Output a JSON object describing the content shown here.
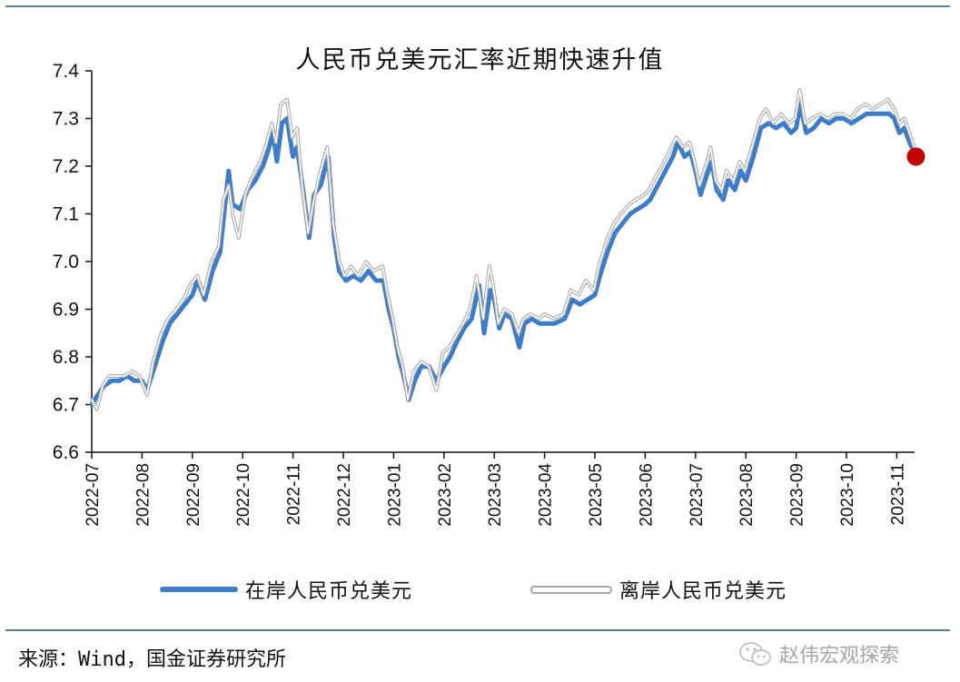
{
  "chart_data": {
    "type": "line",
    "title": "人民币兑美元汇率近期快速升值",
    "xlabel": "",
    "ylabel": "",
    "ylim": [
      6.6,
      7.4
    ],
    "yticks": [
      "6.6",
      "6.7",
      "6.8",
      "6.9",
      "7.0",
      "7.1",
      "7.2",
      "7.3",
      "7.4"
    ],
    "xticks": [
      "2022-07",
      "2022-08",
      "2022-09",
      "2022-10",
      "2022-11",
      "2022-12",
      "2023-01",
      "2023-02",
      "2023-03",
      "2023-04",
      "2023-05",
      "2023-06",
      "2023-07",
      "2023-08",
      "2023-09",
      "2023-10",
      "2023-11"
    ],
    "grid": false,
    "legend_position": "bottom",
    "series": [
      {
        "name": "在岸人民币兑美元",
        "color": "#3d7cc9",
        "style": "solid-thick",
        "points": [
          [
            0.0,
            6.7
          ],
          [
            0.12,
            6.72
          ],
          [
            0.25,
            6.74
          ],
          [
            0.4,
            6.75
          ],
          [
            0.55,
            6.75
          ],
          [
            0.7,
            6.76
          ],
          [
            0.85,
            6.75
          ],
          [
            1.0,
            6.75
          ],
          [
            1.1,
            6.73
          ],
          [
            1.25,
            6.78
          ],
          [
            1.4,
            6.83
          ],
          [
            1.55,
            6.87
          ],
          [
            1.7,
            6.89
          ],
          [
            1.85,
            6.91
          ],
          [
            2.0,
            6.93
          ],
          [
            2.1,
            6.96
          ],
          [
            2.25,
            6.92
          ],
          [
            2.4,
            6.98
          ],
          [
            2.55,
            7.02
          ],
          [
            2.65,
            7.12
          ],
          [
            2.72,
            7.19
          ],
          [
            2.8,
            7.12
          ],
          [
            2.95,
            7.11
          ],
          [
            3.1,
            7.15
          ],
          [
            3.25,
            7.17
          ],
          [
            3.4,
            7.2
          ],
          [
            3.5,
            7.23
          ],
          [
            3.6,
            7.27
          ],
          [
            3.68,
            7.21
          ],
          [
            3.78,
            7.29
          ],
          [
            3.88,
            7.3
          ],
          [
            4.0,
            7.22
          ],
          [
            4.08,
            7.24
          ],
          [
            4.2,
            7.15
          ],
          [
            4.32,
            7.05
          ],
          [
            4.42,
            7.14
          ],
          [
            4.55,
            7.16
          ],
          [
            4.7,
            7.22
          ],
          [
            4.82,
            7.05
          ],
          [
            4.92,
            6.98
          ],
          [
            5.05,
            6.96
          ],
          [
            5.2,
            6.97
          ],
          [
            5.35,
            6.96
          ],
          [
            5.5,
            6.98
          ],
          [
            5.65,
            6.96
          ],
          [
            5.8,
            6.96
          ],
          [
            5.9,
            6.9
          ],
          [
            6.0,
            6.86
          ],
          [
            6.1,
            6.8
          ],
          [
            6.2,
            6.76
          ],
          [
            6.3,
            6.71
          ],
          [
            6.42,
            6.75
          ],
          [
            6.55,
            6.78
          ],
          [
            6.7,
            6.78
          ],
          [
            6.85,
            6.75
          ],
          [
            7.0,
            6.78
          ],
          [
            7.12,
            6.8
          ],
          [
            7.25,
            6.83
          ],
          [
            7.4,
            6.86
          ],
          [
            7.55,
            6.88
          ],
          [
            7.7,
            6.95
          ],
          [
            7.8,
            6.85
          ],
          [
            7.92,
            6.94
          ],
          [
            8.0,
            6.92
          ],
          [
            8.1,
            6.86
          ],
          [
            8.2,
            6.89
          ],
          [
            8.35,
            6.88
          ],
          [
            8.5,
            6.82
          ],
          [
            8.6,
            6.87
          ],
          [
            8.75,
            6.88
          ],
          [
            8.9,
            6.87
          ],
          [
            9.0,
            6.87
          ],
          [
            9.2,
            6.87
          ],
          [
            9.4,
            6.88
          ],
          [
            9.55,
            6.92
          ],
          [
            9.7,
            6.91
          ],
          [
            9.85,
            6.92
          ],
          [
            10.0,
            6.93
          ],
          [
            10.1,
            6.97
          ],
          [
            10.25,
            7.02
          ],
          [
            10.4,
            7.06
          ],
          [
            10.55,
            7.08
          ],
          [
            10.7,
            7.1
          ],
          [
            10.85,
            7.11
          ],
          [
            11.0,
            7.12
          ],
          [
            11.1,
            7.13
          ],
          [
            11.25,
            7.16
          ],
          [
            11.4,
            7.19
          ],
          [
            11.55,
            7.22
          ],
          [
            11.65,
            7.25
          ],
          [
            11.78,
            7.22
          ],
          [
            11.9,
            7.23
          ],
          [
            12.0,
            7.19
          ],
          [
            12.1,
            7.14
          ],
          [
            12.22,
            7.18
          ],
          [
            12.32,
            7.21
          ],
          [
            12.42,
            7.15
          ],
          [
            12.55,
            7.13
          ],
          [
            12.65,
            7.17
          ],
          [
            12.78,
            7.15
          ],
          [
            12.9,
            7.19
          ],
          [
            13.0,
            7.17
          ],
          [
            13.15,
            7.22
          ],
          [
            13.3,
            7.28
          ],
          [
            13.45,
            7.29
          ],
          [
            13.6,
            7.28
          ],
          [
            13.75,
            7.29
          ],
          [
            13.9,
            7.27
          ],
          [
            14.0,
            7.28
          ],
          [
            14.08,
            7.33
          ],
          [
            14.2,
            7.27
          ],
          [
            14.35,
            7.28
          ],
          [
            14.5,
            7.3
          ],
          [
            14.65,
            7.29
          ],
          [
            14.8,
            7.3
          ],
          [
            14.95,
            7.3
          ],
          [
            15.1,
            7.29
          ],
          [
            15.25,
            7.3
          ],
          [
            15.4,
            7.31
          ],
          [
            15.55,
            7.31
          ],
          [
            15.7,
            7.31
          ],
          [
            15.85,
            7.31
          ],
          [
            15.95,
            7.3
          ],
          [
            16.05,
            7.27
          ],
          [
            16.15,
            7.28
          ],
          [
            16.25,
            7.25
          ],
          [
            16.35,
            7.23
          ]
        ]
      },
      {
        "name": "离岸人民币兑美元",
        "color": "#a8a8a8",
        "style": "outlined",
        "points": [
          [
            0.0,
            6.71
          ],
          [
            0.1,
            6.69
          ],
          [
            0.22,
            6.74
          ],
          [
            0.35,
            6.76
          ],
          [
            0.5,
            6.76
          ],
          [
            0.65,
            6.76
          ],
          [
            0.8,
            6.77
          ],
          [
            0.95,
            6.76
          ],
          [
            1.1,
            6.72
          ],
          [
            1.22,
            6.79
          ],
          [
            1.38,
            6.85
          ],
          [
            1.52,
            6.88
          ],
          [
            1.68,
            6.9
          ],
          [
            1.82,
            6.92
          ],
          [
            1.95,
            6.95
          ],
          [
            2.1,
            6.97
          ],
          [
            2.22,
            6.93
          ],
          [
            2.38,
            7.0
          ],
          [
            2.52,
            7.03
          ],
          [
            2.62,
            7.13
          ],
          [
            2.72,
            7.16
          ],
          [
            2.82,
            7.09
          ],
          [
            2.92,
            7.05
          ],
          [
            3.05,
            7.14
          ],
          [
            3.2,
            7.18
          ],
          [
            3.35,
            7.21
          ],
          [
            3.48,
            7.25
          ],
          [
            3.58,
            7.29
          ],
          [
            3.66,
            7.25
          ],
          [
            3.76,
            7.33
          ],
          [
            3.88,
            7.34
          ],
          [
            3.98,
            7.26
          ],
          [
            4.08,
            7.28
          ],
          [
            4.18,
            7.16
          ],
          [
            4.3,
            7.06
          ],
          [
            4.4,
            7.12
          ],
          [
            4.52,
            7.18
          ],
          [
            4.68,
            7.24
          ],
          [
            4.8,
            7.08
          ],
          [
            4.92,
            7.0
          ],
          [
            5.02,
            6.97
          ],
          [
            5.15,
            6.99
          ],
          [
            5.3,
            6.97
          ],
          [
            5.45,
            7.0
          ],
          [
            5.6,
            6.98
          ],
          [
            5.78,
            6.99
          ],
          [
            5.88,
            6.93
          ],
          [
            5.98,
            6.88
          ],
          [
            6.08,
            6.82
          ],
          [
            6.18,
            6.78
          ],
          [
            6.28,
            6.71
          ],
          [
            6.4,
            6.77
          ],
          [
            6.55,
            6.79
          ],
          [
            6.7,
            6.78
          ],
          [
            6.85,
            6.73
          ],
          [
            6.98,
            6.81
          ],
          [
            7.1,
            6.82
          ],
          [
            7.22,
            6.84
          ],
          [
            7.38,
            6.87
          ],
          [
            7.52,
            6.9
          ],
          [
            7.65,
            6.97
          ],
          [
            7.78,
            6.88
          ],
          [
            7.9,
            6.99
          ],
          [
            7.98,
            6.95
          ],
          [
            8.08,
            6.87
          ],
          [
            8.2,
            6.9
          ],
          [
            8.35,
            6.89
          ],
          [
            8.48,
            6.85
          ],
          [
            8.58,
            6.88
          ],
          [
            8.72,
            6.89
          ],
          [
            8.88,
            6.88
          ],
          [
            9.0,
            6.89
          ],
          [
            9.18,
            6.88
          ],
          [
            9.38,
            6.89
          ],
          [
            9.52,
            6.94
          ],
          [
            9.68,
            6.93
          ],
          [
            9.82,
            6.96
          ],
          [
            9.98,
            6.94
          ],
          [
            10.08,
            6.99
          ],
          [
            10.22,
            7.04
          ],
          [
            10.38,
            7.08
          ],
          [
            10.52,
            7.1
          ],
          [
            10.68,
            7.12
          ],
          [
            10.82,
            7.13
          ],
          [
            10.98,
            7.14
          ],
          [
            11.08,
            7.15
          ],
          [
            11.22,
            7.18
          ],
          [
            11.38,
            7.21
          ],
          [
            11.52,
            7.24
          ],
          [
            11.62,
            7.26
          ],
          [
            11.75,
            7.24
          ],
          [
            11.88,
            7.25
          ],
          [
            11.98,
            7.21
          ],
          [
            12.08,
            7.16
          ],
          [
            12.2,
            7.2
          ],
          [
            12.3,
            7.24
          ],
          [
            12.4,
            7.17
          ],
          [
            12.52,
            7.15
          ],
          [
            12.62,
            7.19
          ],
          [
            12.75,
            7.17
          ],
          [
            12.88,
            7.21
          ],
          [
            12.98,
            7.19
          ],
          [
            13.12,
            7.24
          ],
          [
            13.28,
            7.3
          ],
          [
            13.4,
            7.32
          ],
          [
            13.55,
            7.29
          ],
          [
            13.7,
            7.31
          ],
          [
            13.85,
            7.29
          ],
          [
            13.98,
            7.3
          ],
          [
            14.07,
            7.36
          ],
          [
            14.18,
            7.29
          ],
          [
            14.32,
            7.3
          ],
          [
            14.48,
            7.31
          ],
          [
            14.62,
            7.3
          ],
          [
            14.78,
            7.31
          ],
          [
            14.92,
            7.31
          ],
          [
            15.08,
            7.3
          ],
          [
            15.22,
            7.32
          ],
          [
            15.38,
            7.33
          ],
          [
            15.52,
            7.32
          ],
          [
            15.68,
            7.33
          ],
          [
            15.82,
            7.34
          ],
          [
            15.95,
            7.32
          ],
          [
            16.05,
            7.29
          ],
          [
            16.15,
            7.3
          ],
          [
            16.25,
            7.27
          ],
          [
            16.35,
            7.24
          ]
        ]
      }
    ],
    "annotations": [
      {
        "type": "marker",
        "shape": "circle",
        "color": "#c00000",
        "x": 16.38,
        "y": 7.22,
        "note": "latest point highlight"
      }
    ]
  },
  "header": {
    "title": "人民币兑美元汇率近期快速升值"
  },
  "legend": {
    "onshore_label": "在岸人民币兑美元",
    "offshore_label": "离岸人民币兑美元"
  },
  "footer": {
    "source": "来源：Wind，国金证券研究所",
    "watermark": "赵伟宏观探索"
  },
  "colors": {
    "onshore": "#3d7cc9",
    "offshore": "#a8a8a8",
    "marker": "#c00000",
    "rule": "#5a7c97"
  }
}
